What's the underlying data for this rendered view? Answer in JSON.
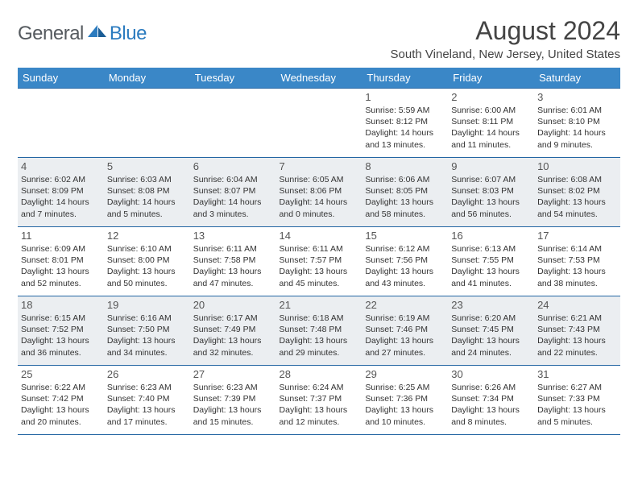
{
  "brand": {
    "part1": "General",
    "part2": "Blue"
  },
  "title": "August 2024",
  "location": "South Vineland, New Jersey, United States",
  "colors": {
    "header_bg": "#3a87c7",
    "header_text": "#ffffff",
    "rule": "#2466a3",
    "alt_row": "#ebeef1",
    "text": "#333333",
    "brand_gray": "#555a5f",
    "brand_blue": "#2b7bbf"
  },
  "day_labels": [
    "Sunday",
    "Monday",
    "Tuesday",
    "Wednesday",
    "Thursday",
    "Friday",
    "Saturday"
  ],
  "weeks": [
    [
      {},
      {},
      {},
      {},
      {
        "n": "1",
        "sr": "5:59 AM",
        "ss": "8:12 PM",
        "dl": "14 hours and 13 minutes."
      },
      {
        "n": "2",
        "sr": "6:00 AM",
        "ss": "8:11 PM",
        "dl": "14 hours and 11 minutes."
      },
      {
        "n": "3",
        "sr": "6:01 AM",
        "ss": "8:10 PM",
        "dl": "14 hours and 9 minutes."
      }
    ],
    [
      {
        "n": "4",
        "sr": "6:02 AM",
        "ss": "8:09 PM",
        "dl": "14 hours and 7 minutes."
      },
      {
        "n": "5",
        "sr": "6:03 AM",
        "ss": "8:08 PM",
        "dl": "14 hours and 5 minutes."
      },
      {
        "n": "6",
        "sr": "6:04 AM",
        "ss": "8:07 PM",
        "dl": "14 hours and 3 minutes."
      },
      {
        "n": "7",
        "sr": "6:05 AM",
        "ss": "8:06 PM",
        "dl": "14 hours and 0 minutes."
      },
      {
        "n": "8",
        "sr": "6:06 AM",
        "ss": "8:05 PM",
        "dl": "13 hours and 58 minutes."
      },
      {
        "n": "9",
        "sr": "6:07 AM",
        "ss": "8:03 PM",
        "dl": "13 hours and 56 minutes."
      },
      {
        "n": "10",
        "sr": "6:08 AM",
        "ss": "8:02 PM",
        "dl": "13 hours and 54 minutes."
      }
    ],
    [
      {
        "n": "11",
        "sr": "6:09 AM",
        "ss": "8:01 PM",
        "dl": "13 hours and 52 minutes."
      },
      {
        "n": "12",
        "sr": "6:10 AM",
        "ss": "8:00 PM",
        "dl": "13 hours and 50 minutes."
      },
      {
        "n": "13",
        "sr": "6:11 AM",
        "ss": "7:58 PM",
        "dl": "13 hours and 47 minutes."
      },
      {
        "n": "14",
        "sr": "6:11 AM",
        "ss": "7:57 PM",
        "dl": "13 hours and 45 minutes."
      },
      {
        "n": "15",
        "sr": "6:12 AM",
        "ss": "7:56 PM",
        "dl": "13 hours and 43 minutes."
      },
      {
        "n": "16",
        "sr": "6:13 AM",
        "ss": "7:55 PM",
        "dl": "13 hours and 41 minutes."
      },
      {
        "n": "17",
        "sr": "6:14 AM",
        "ss": "7:53 PM",
        "dl": "13 hours and 38 minutes."
      }
    ],
    [
      {
        "n": "18",
        "sr": "6:15 AM",
        "ss": "7:52 PM",
        "dl": "13 hours and 36 minutes."
      },
      {
        "n": "19",
        "sr": "6:16 AM",
        "ss": "7:50 PM",
        "dl": "13 hours and 34 minutes."
      },
      {
        "n": "20",
        "sr": "6:17 AM",
        "ss": "7:49 PM",
        "dl": "13 hours and 32 minutes."
      },
      {
        "n": "21",
        "sr": "6:18 AM",
        "ss": "7:48 PM",
        "dl": "13 hours and 29 minutes."
      },
      {
        "n": "22",
        "sr": "6:19 AM",
        "ss": "7:46 PM",
        "dl": "13 hours and 27 minutes."
      },
      {
        "n": "23",
        "sr": "6:20 AM",
        "ss": "7:45 PM",
        "dl": "13 hours and 24 minutes."
      },
      {
        "n": "24",
        "sr": "6:21 AM",
        "ss": "7:43 PM",
        "dl": "13 hours and 22 minutes."
      }
    ],
    [
      {
        "n": "25",
        "sr": "6:22 AM",
        "ss": "7:42 PM",
        "dl": "13 hours and 20 minutes."
      },
      {
        "n": "26",
        "sr": "6:23 AM",
        "ss": "7:40 PM",
        "dl": "13 hours and 17 minutes."
      },
      {
        "n": "27",
        "sr": "6:23 AM",
        "ss": "7:39 PM",
        "dl": "13 hours and 15 minutes."
      },
      {
        "n": "28",
        "sr": "6:24 AM",
        "ss": "7:37 PM",
        "dl": "13 hours and 12 minutes."
      },
      {
        "n": "29",
        "sr": "6:25 AM",
        "ss": "7:36 PM",
        "dl": "13 hours and 10 minutes."
      },
      {
        "n": "30",
        "sr": "6:26 AM",
        "ss": "7:34 PM",
        "dl": "13 hours and 8 minutes."
      },
      {
        "n": "31",
        "sr": "6:27 AM",
        "ss": "7:33 PM",
        "dl": "13 hours and 5 minutes."
      }
    ]
  ],
  "labels": {
    "sunrise": "Sunrise:",
    "sunset": "Sunset:",
    "daylight": "Daylight:"
  }
}
